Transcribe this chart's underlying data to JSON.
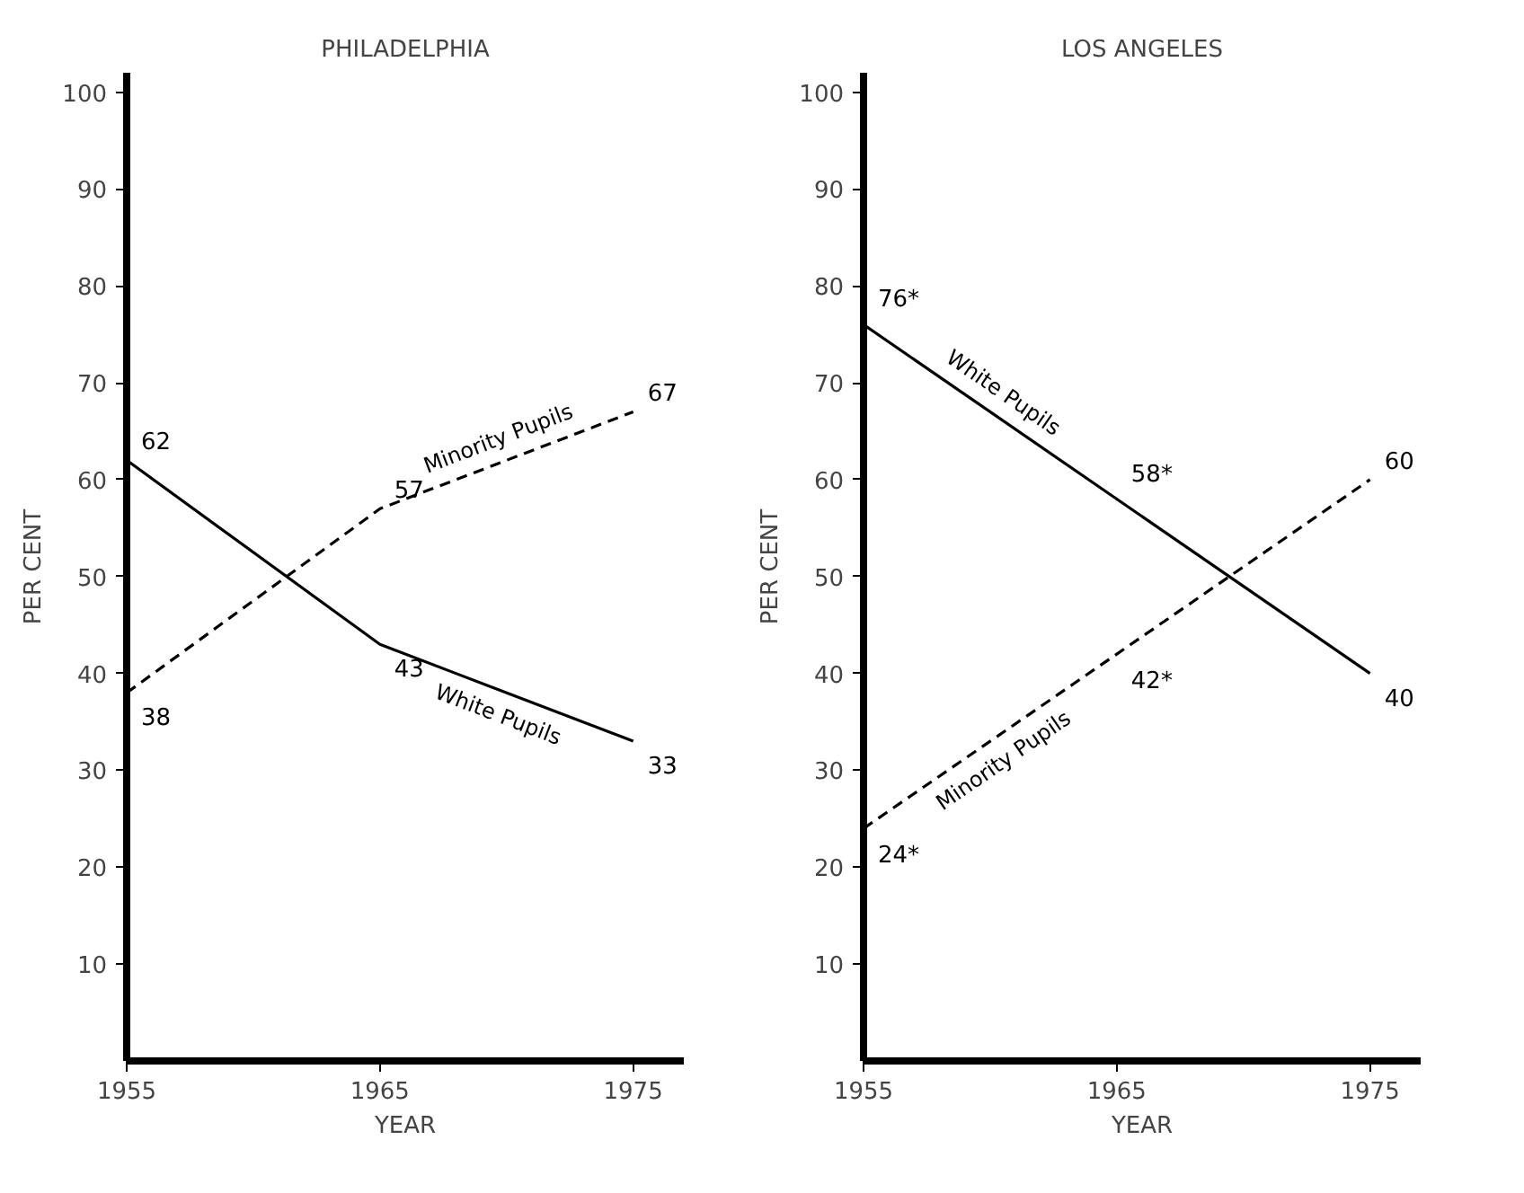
{
  "chart_data": [
    {
      "type": "line",
      "title": "PHILADELPHIA",
      "xlabel": "YEAR",
      "ylabel": "PER CENT",
      "x": [
        1955,
        1965,
        1975
      ],
      "xlim": [
        1955,
        1977
      ],
      "xticks": [
        1955,
        1965,
        1975
      ],
      "ylim": [
        0,
        102
      ],
      "yticks": [
        10,
        20,
        30,
        40,
        50,
        60,
        70,
        80,
        90,
        100
      ],
      "grid": false,
      "marker": "none",
      "series": [
        {
          "name": "White Pupils",
          "color": "#000000",
          "line_style": "solid",
          "values": [
            62,
            43,
            33
          ],
          "value_labels": [
            "62",
            "43",
            "33"
          ]
        },
        {
          "name": "Minority Pupils",
          "color": "#000000",
          "line_style": "dashed",
          "values": [
            38,
            57,
            67
          ],
          "value_labels": [
            "38",
            "57",
            "67"
          ]
        }
      ]
    },
    {
      "type": "line",
      "title": "LOS ANGELES",
      "xlabel": "YEAR",
      "ylabel": "PER CENT",
      "x": [
        1955,
        1965,
        1975
      ],
      "xlim": [
        1955,
        1977
      ],
      "xticks": [
        1955,
        1965,
        1975
      ],
      "ylim": [
        0,
        102
      ],
      "yticks": [
        10,
        20,
        30,
        40,
        50,
        60,
        70,
        80,
        90,
        100
      ],
      "grid": false,
      "marker": "none",
      "series": [
        {
          "name": "White Pupils",
          "color": "#000000",
          "line_style": "solid",
          "values": [
            76,
            58,
            40
          ],
          "value_labels": [
            "76*",
            "58*",
            "40"
          ]
        },
        {
          "name": "Minority Pupils",
          "color": "#000000",
          "line_style": "dashed",
          "values": [
            24,
            42,
            60
          ],
          "value_labels": [
            "24*",
            "42*",
            "60"
          ]
        }
      ]
    }
  ]
}
